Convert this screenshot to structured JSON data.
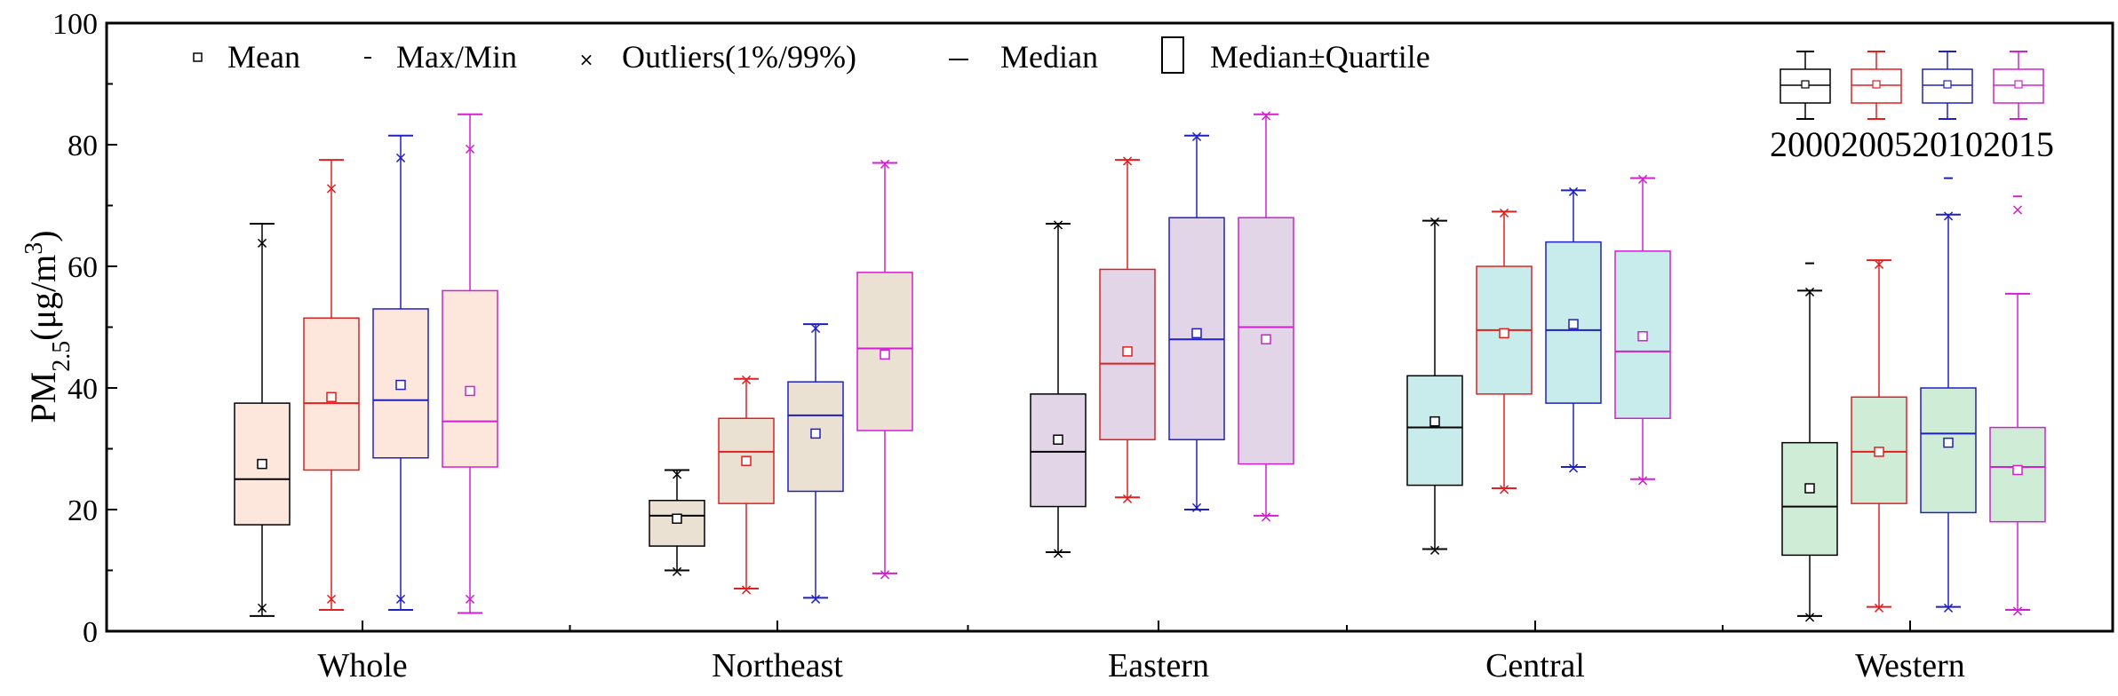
{
  "chart_data": {
    "type": "box",
    "ylabel": "PM2.5(μg/m3)",
    "ylabel_parts": {
      "main": "PM",
      "sub": "2.5",
      "unit_open": "(μg/m",
      "sup": "3",
      "unit_close": ")"
    },
    "ylim": [
      0,
      100
    ],
    "yticks": [
      0,
      20,
      40,
      60,
      80,
      100
    ],
    "categories": [
      "Whole",
      "Northeast",
      "Eastern",
      "Central",
      "Western"
    ],
    "category_fills": [
      "#fde6dc",
      "#ebe1d2",
      "#e2d5e8",
      "#c8ecec",
      "#cfecd6"
    ],
    "series": [
      {
        "name": "2000",
        "color": "#000000"
      },
      {
        "name": "2005",
        "color": "#e02020"
      },
      {
        "name": "2010",
        "color": "#2020c0"
      },
      {
        "name": "2015",
        "color": "#d020d0"
      }
    ],
    "boxes": [
      [
        {
          "min": 2.5,
          "q1": 17.5,
          "median": 25,
          "q3": 37.5,
          "max": 67,
          "mean": 27.5,
          "outliers": [
            4,
            64
          ]
        },
        {
          "min": 3.5,
          "q1": 26.5,
          "median": 37.5,
          "q3": 51.5,
          "max": 77.5,
          "mean": 38.5,
          "outliers": [
            5.5,
            73
          ]
        },
        {
          "min": 3.5,
          "q1": 28.5,
          "median": 38,
          "q3": 53,
          "max": 81.5,
          "mean": 40.5,
          "outliers": [
            5.5,
            78
          ]
        },
        {
          "min": 3,
          "q1": 27,
          "median": 34.5,
          "q3": 56,
          "max": 85,
          "mean": 39.5,
          "outliers": [
            5.5,
            79.5
          ]
        }
      ],
      [
        {
          "min": 10,
          "q1": 14,
          "median": 19,
          "q3": 21.5,
          "max": 26.5,
          "mean": 18.5,
          "outliers": [
            10,
            26
          ]
        },
        {
          "min": 7,
          "q1": 21,
          "median": 29.5,
          "q3": 35,
          "max": 41.5,
          "mean": 28,
          "outliers": [
            7,
            41.5
          ]
        },
        {
          "min": 5.5,
          "q1": 23,
          "median": 35.5,
          "q3": 41,
          "max": 50.5,
          "mean": 32.5,
          "outliers": [
            5.5,
            50
          ]
        },
        {
          "min": 9.5,
          "q1": 33,
          "median": 46.5,
          "q3": 59,
          "max": 77,
          "mean": 45.5,
          "outliers": [
            9.5,
            77
          ]
        }
      ],
      [
        {
          "min": 13,
          "q1": 20.5,
          "median": 29.5,
          "q3": 39,
          "max": 67,
          "mean": 31.5,
          "outliers": [
            13,
            67
          ]
        },
        {
          "min": 22,
          "q1": 31.5,
          "median": 44,
          "q3": 59.5,
          "max": 77.5,
          "mean": 46,
          "outliers": [
            22,
            77.5
          ]
        },
        {
          "min": 20,
          "q1": 31.5,
          "median": 48,
          "q3": 68,
          "max": 81.5,
          "mean": 49,
          "outliers": [
            20.5,
            81.5
          ]
        },
        {
          "min": 19,
          "q1": 27.5,
          "median": 50,
          "q3": 68,
          "max": 85,
          "mean": 48,
          "outliers": [
            19,
            85
          ]
        }
      ],
      [
        {
          "min": 13.5,
          "q1": 24,
          "median": 33.5,
          "q3": 42,
          "max": 67.5,
          "mean": 34.5,
          "outliers": [
            13.5,
            67.5
          ]
        },
        {
          "min": 23.5,
          "q1": 39,
          "median": 49.5,
          "q3": 60,
          "max": 69,
          "mean": 49,
          "outliers": [
            23.5,
            69
          ]
        },
        {
          "min": 27,
          "q1": 37.5,
          "median": 49.5,
          "q3": 64,
          "max": 72.5,
          "mean": 50.5,
          "outliers": [
            27,
            72.5
          ]
        },
        {
          "min": 25,
          "q1": 35,
          "median": 46,
          "q3": 62.5,
          "max": 74.5,
          "mean": 48.5,
          "outliers": [
            25,
            74.5
          ]
        }
      ],
      [
        {
          "min": 2.5,
          "q1": 12.5,
          "median": 20.5,
          "q3": 31,
          "max": 56,
          "mean": 23.5,
          "outliers": [
            2.5,
            56
          ],
          "extremes": [
            60.5
          ]
        },
        {
          "min": 4,
          "q1": 21,
          "median": 29.5,
          "q3": 38.5,
          "max": 61,
          "mean": 29.5,
          "outliers": [
            4,
            60.5
          ]
        },
        {
          "min": 4,
          "q1": 19.5,
          "median": 32.5,
          "q3": 40,
          "max": 68.5,
          "mean": 31,
          "outliers": [
            4,
            68.5
          ],
          "extremes": [
            74.5
          ]
        },
        {
          "min": 3.5,
          "q1": 18,
          "median": 27,
          "q3": 33.5,
          "max": 55.5,
          "mean": 26.5,
          "outliers": [
            3.5,
            69.5
          ],
          "extremes": [
            71.5
          ]
        }
      ]
    ],
    "legend": {
      "mean": "Mean",
      "maxmin": "Max/Min",
      "outliers": "Outliers(1%/99%)",
      "median": "Median",
      "quartile": "Median±Quartile"
    }
  }
}
